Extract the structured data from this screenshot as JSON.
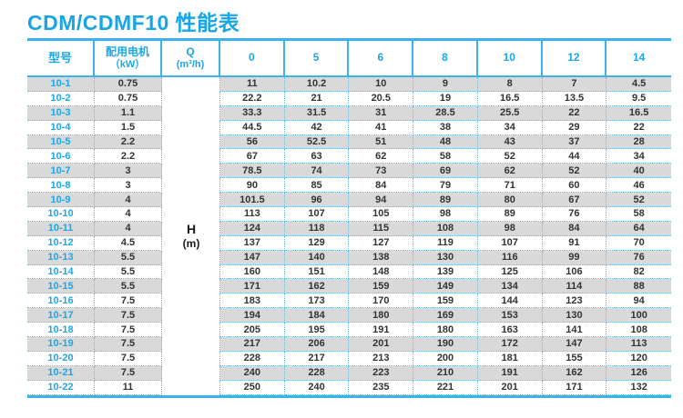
{
  "title": "CDM/CDMF10 性能表",
  "table": {
    "headers": {
      "model": "型号",
      "motor_line1": "配用电机",
      "motor_line2": "（kW）",
      "q_line1": "Q",
      "q_line2": "(m³/h)",
      "flow_columns": [
        "0",
        "5",
        "6",
        "8",
        "10",
        "12",
        "14"
      ]
    },
    "h_label_line1": "H",
    "h_label_line2": "(m)",
    "rows": [
      {
        "model": "10-1",
        "kw": "0.75",
        "values": [
          "11",
          "10.2",
          "10",
          "9",
          "8",
          "7",
          "4.5"
        ]
      },
      {
        "model": "10-2",
        "kw": "0.75",
        "values": [
          "22.2",
          "21",
          "20.5",
          "19",
          "16.5",
          "13.5",
          "9.5"
        ]
      },
      {
        "model": "10-3",
        "kw": "1.1",
        "values": [
          "33.3",
          "31.5",
          "31",
          "28.5",
          "25.5",
          "22",
          "16.5"
        ]
      },
      {
        "model": "10-4",
        "kw": "1.5",
        "values": [
          "44.5",
          "42",
          "41",
          "38",
          "34",
          "29",
          "22"
        ]
      },
      {
        "model": "10-5",
        "kw": "2.2",
        "values": [
          "56",
          "52.5",
          "51",
          "48",
          "43",
          "37",
          "28"
        ]
      },
      {
        "model": "10-6",
        "kw": "2.2",
        "values": [
          "67",
          "63",
          "62",
          "58",
          "52",
          "44",
          "34"
        ]
      },
      {
        "model": "10-7",
        "kw": "3",
        "values": [
          "78.5",
          "74",
          "73",
          "69",
          "62",
          "52",
          "40"
        ]
      },
      {
        "model": "10-8",
        "kw": "3",
        "values": [
          "90",
          "85",
          "84",
          "79",
          "71",
          "60",
          "46"
        ]
      },
      {
        "model": "10-9",
        "kw": "4",
        "values": [
          "101.5",
          "96",
          "94",
          "89",
          "80",
          "67",
          "52"
        ]
      },
      {
        "model": "10-10",
        "kw": "4",
        "values": [
          "113",
          "107",
          "105",
          "98",
          "89",
          "76",
          "58"
        ]
      },
      {
        "model": "10-11",
        "kw": "4",
        "values": [
          "124",
          "118",
          "115",
          "108",
          "98",
          "84",
          "64"
        ]
      },
      {
        "model": "10-12",
        "kw": "4.5",
        "values": [
          "137",
          "129",
          "127",
          "119",
          "107",
          "91",
          "70"
        ]
      },
      {
        "model": "10-13",
        "kw": "5.5",
        "values": [
          "147",
          "140",
          "138",
          "130",
          "116",
          "99",
          "76"
        ]
      },
      {
        "model": "10-14",
        "kw": "5.5",
        "values": [
          "160",
          "151",
          "148",
          "139",
          "125",
          "106",
          "82"
        ]
      },
      {
        "model": "10-15",
        "kw": "5.5",
        "values": [
          "171",
          "162",
          "159",
          "149",
          "134",
          "114",
          "88"
        ]
      },
      {
        "model": "10-16",
        "kw": "7.5",
        "values": [
          "183",
          "173",
          "170",
          "159",
          "144",
          "123",
          "94"
        ]
      },
      {
        "model": "10-17",
        "kw": "7.5",
        "values": [
          "194",
          "184",
          "180",
          "169",
          "153",
          "130",
          "100"
        ]
      },
      {
        "model": "10-18",
        "kw": "7.5",
        "values": [
          "205",
          "195",
          "191",
          "180",
          "163",
          "141",
          "108"
        ]
      },
      {
        "model": "10-19",
        "kw": "7.5",
        "values": [
          "217",
          "206",
          "201",
          "190",
          "172",
          "147",
          "113"
        ]
      },
      {
        "model": "10-20",
        "kw": "7.5",
        "values": [
          "228",
          "217",
          "213",
          "200",
          "181",
          "155",
          "120"
        ]
      },
      {
        "model": "10-21",
        "kw": "7.5",
        "values": [
          "240",
          "228",
          "223",
          "210",
          "191",
          "162",
          "126"
        ]
      },
      {
        "model": "10-22",
        "kw": "11",
        "values": [
          "250",
          "240",
          "235",
          "221",
          "201",
          "171",
          "132"
        ]
      }
    ]
  },
  "colors": {
    "accent_cyan": "#1ba7e8",
    "rule_cyan": "#3ab2ea",
    "dotted_blue": "#5ec4ef",
    "stripe_gray": "#d9d9d9",
    "data_text": "#333333"
  }
}
